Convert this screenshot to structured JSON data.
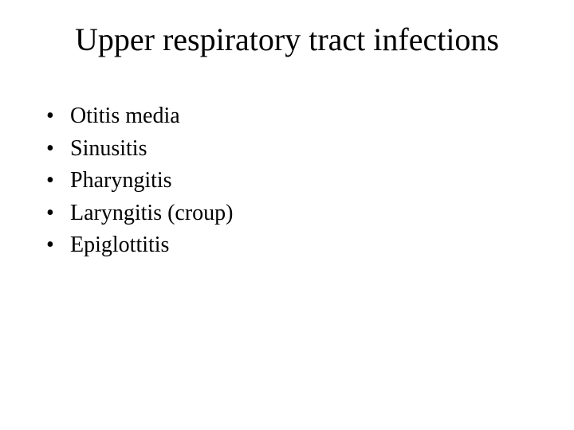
{
  "slide": {
    "title": "Upper respiratory tract infections",
    "title_color": "#000000",
    "title_fontsize": 40,
    "background_color": "#ffffff",
    "bullet_char": "•",
    "bullet_fontsize": 28,
    "bullet_color": "#000000",
    "bullets": [
      {
        "text": "Otitis media"
      },
      {
        "text": "Sinusitis"
      },
      {
        "text": "Pharyngitis"
      },
      {
        "text": "Laryngitis (croup)"
      },
      {
        "text": "Epiglottitis"
      }
    ]
  }
}
